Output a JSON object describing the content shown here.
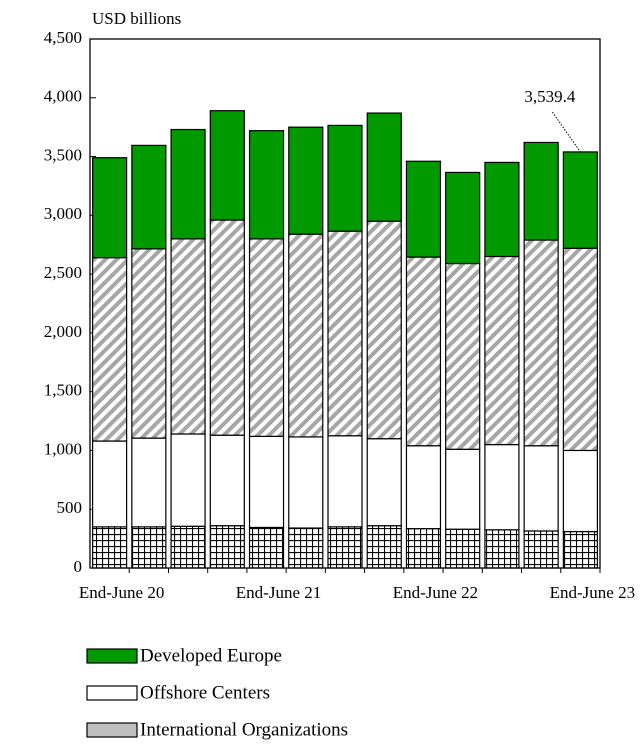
{
  "chart_data": {
    "type": "stacked-bar",
    "y_label": "USD billions",
    "annotation": "3,539.4",
    "categories": [
      "End-June 20",
      null,
      null,
      null,
      "End-June 21",
      null,
      null,
      null,
      "End-June 22",
      null,
      null,
      null,
      "End-June 23"
    ],
    "series": [
      {
        "name": "Developed Europe",
        "color": "#009900",
        "values": [
          850,
          880,
          930,
          930,
          920,
          910,
          900,
          920,
          815,
          775,
          800,
          830,
          819.4
        ]
      },
      {
        "name": "Offshore Centers",
        "color": "#ffffff",
        "values": [
          730,
          755,
          785,
          770,
          775,
          775,
          775,
          740,
          705,
          680,
          725,
          725,
          690
        ]
      },
      {
        "name": "International Organizations",
        "color": "#bfbfbf",
        "values": [
          1560,
          1610,
          1660,
          1830,
          1680,
          1725,
          1740,
          1850,
          1605,
          1580,
          1600,
          1750,
          1720
        ]
      },
      {
        "color": "#000000",
        "values": [
          350,
          350,
          355,
          360,
          345,
          340,
          350,
          360,
          335,
          330,
          325,
          315,
          310
        ]
      }
    ],
    "ylim": [
      0,
      4500
    ],
    "yticks": [
      0,
      500,
      {
        "value": 1000,
        "label": "1,000"
      },
      {
        "value": 1500,
        "label": "1,500"
      },
      {
        "value": 2000,
        "label": "2,000"
      },
      {
        "value": 2500,
        "label": "2,500"
      },
      {
        "value": 3000,
        "label": "3,000"
      },
      {
        "value": 3500,
        "label": "3,500"
      },
      {
        "value": 4000,
        "label": "4,000"
      },
      {
        "value": 4500,
        "label": "4,500"
      }
    ],
    "grid": false
  }
}
